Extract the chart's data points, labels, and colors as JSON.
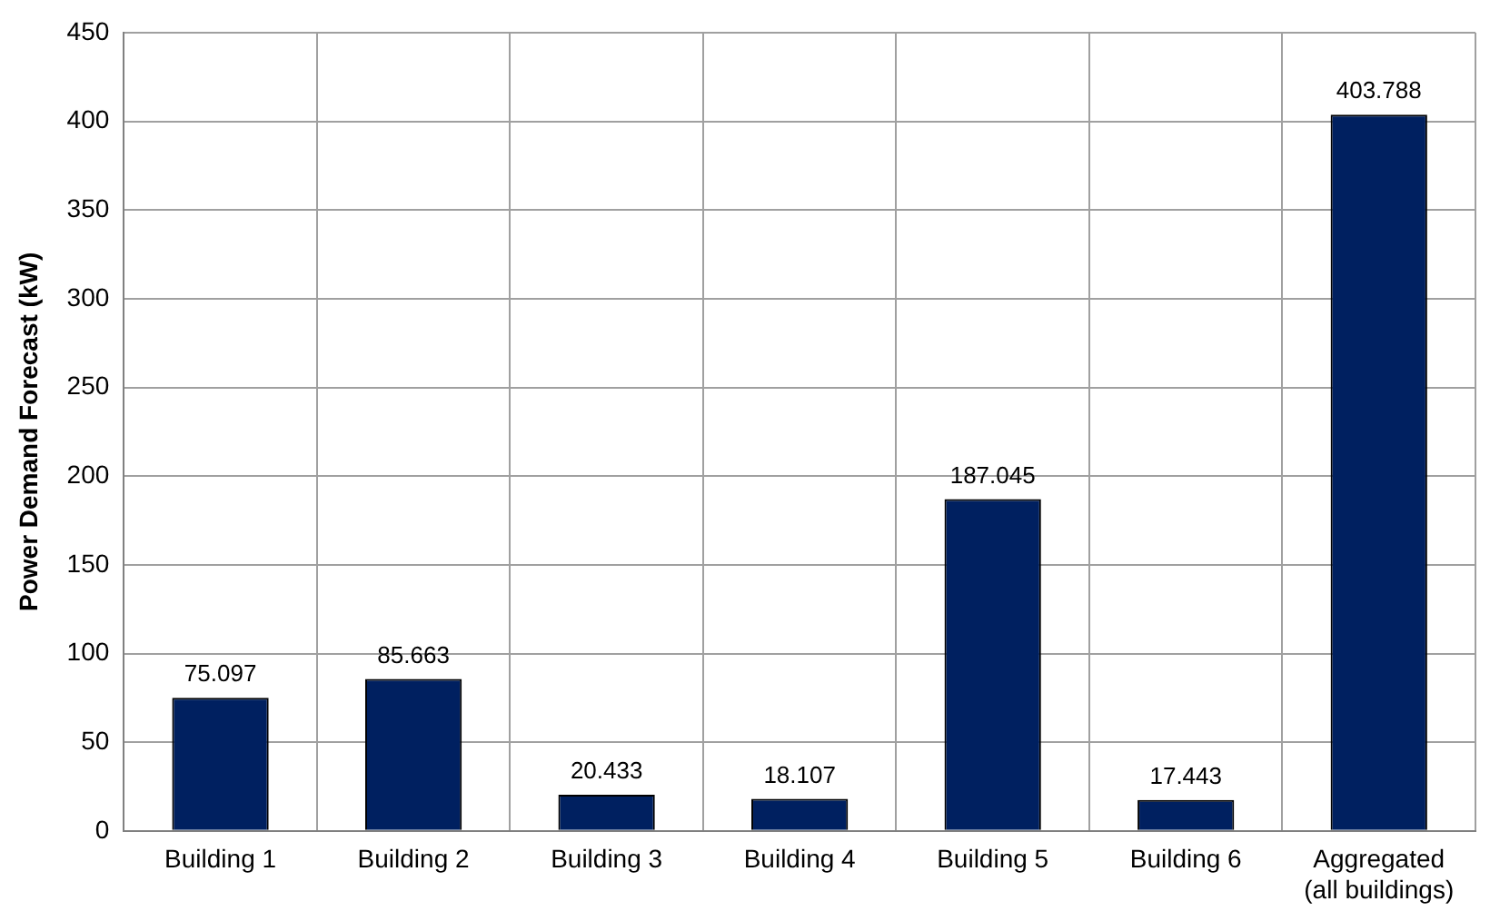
{
  "chart_data": {
    "type": "bar",
    "ylabel": "Power Demand Forecast (kW)",
    "categories": [
      "Building 1",
      "Building 2",
      "Building 3",
      "Building 4",
      "Building 5",
      "Building 6",
      "Aggregated\n(all buildings)"
    ],
    "values": [
      75.097,
      85.663,
      20.433,
      18.107,
      187.045,
      17.443,
      403.788
    ],
    "color": "#002060",
    "ylim": [
      0,
      450
    ],
    "yticks": [
      0,
      50,
      100,
      150,
      200,
      250,
      300,
      350,
      400,
      450
    ],
    "grid": true,
    "data_labels": true
  }
}
